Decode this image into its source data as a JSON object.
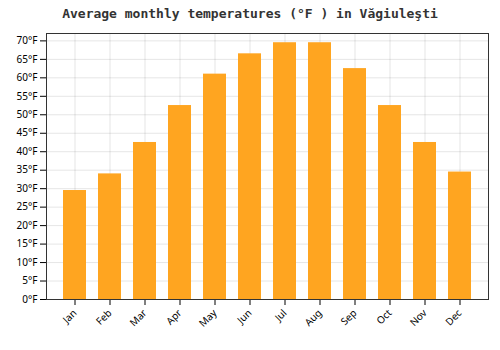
{
  "chart_data": {
    "type": "bar",
    "title": "Average monthly temperatures (°F ) in Văgiuleşti",
    "categories": [
      "Jan",
      "Feb",
      "Mar",
      "Apr",
      "May",
      "Jun",
      "Jul",
      "Aug",
      "Sep",
      "Oct",
      "Nov",
      "Dec"
    ],
    "values": [
      29.5,
      34.0,
      42.5,
      52.5,
      61.0,
      66.5,
      69.5,
      69.5,
      62.5,
      52.5,
      42.5,
      34.5
    ],
    "color": "#FFA520",
    "ylim": [
      0,
      72
    ],
    "yticks": [
      {
        "value": 0,
        "label": "0°F"
      },
      {
        "value": 5,
        "label": "5°F"
      },
      {
        "value": 10,
        "label": "10°F"
      },
      {
        "value": 15,
        "label": "15°F"
      },
      {
        "value": 20,
        "label": "20°F"
      },
      {
        "value": 25,
        "label": "25°F"
      },
      {
        "value": 30,
        "label": "30°F"
      },
      {
        "value": 35,
        "label": "35°F"
      },
      {
        "value": 40,
        "label": "40°F"
      },
      {
        "value": 45,
        "label": "45°F"
      },
      {
        "value": 50,
        "label": "50°F"
      },
      {
        "value": 55,
        "label": "55°F"
      },
      {
        "value": 60,
        "label": "60°F"
      },
      {
        "value": 65,
        "label": "65°F"
      },
      {
        "value": 70,
        "label": "70°F"
      }
    ],
    "grid": true
  }
}
